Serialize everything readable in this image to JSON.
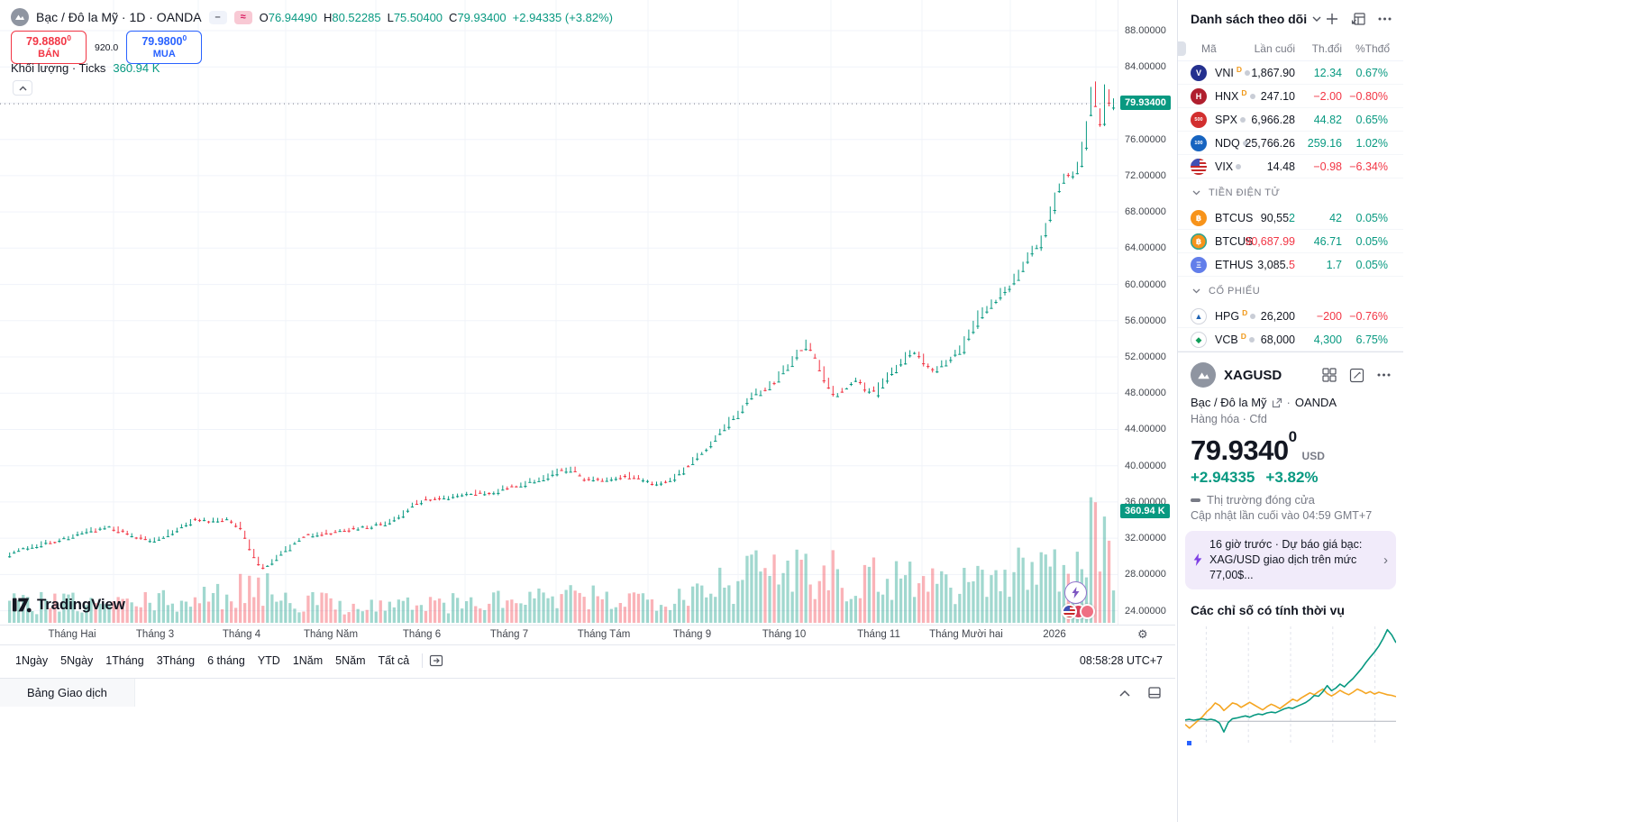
{
  "header": {
    "symbol_title": "Bạc / Đô la Mỹ · 1D · OANDA",
    "legend_icons": {
      "minus_glyph": "–",
      "wave_glyph": "≈"
    },
    "ohlc": {
      "o_label": "O",
      "o_value": "76.94490",
      "h_label": "H",
      "h_value": "80.52285",
      "l_label": "L",
      "l_value": "75.50400",
      "c_label": "C",
      "c_value": "79.93400",
      "change": "+2.94335 (+3.82%)"
    },
    "sell_button": {
      "price": "79.8880",
      "sup": "0",
      "label": "BÁN"
    },
    "spread": "920.0",
    "buy_button": {
      "price": "79.9800",
      "sup": "0",
      "label": "MUA"
    },
    "volume_row": {
      "label": "Khối lượng · Ticks",
      "value": "360.94 K"
    }
  },
  "axis": {
    "price_tag": "79.93400",
    "volume_tag": "360.94 K"
  },
  "toolbar": {
    "ranges": [
      "1Ngày",
      "5Ngày",
      "1Tháng",
      "3Tháng",
      "6 tháng",
      "YTD",
      "1Năm",
      "5Năm",
      "Tất cả"
    ],
    "clock": "08:58:28 UTC+7"
  },
  "bottom_bar": {
    "tab_label": "Bảng Giao dịch"
  },
  "logo_text": "TradingView",
  "watchlist": {
    "title": "Danh sách theo dõi",
    "columns": [
      "Mã",
      "Lần cuối",
      "Th.đổi",
      "%Thđổ"
    ],
    "groups": [
      {
        "section": null,
        "rows": [
          {
            "icon": "vni",
            "symbol": "VNI",
            "d_badge": true,
            "dot": true,
            "last": "1,867.90",
            "chg": "12.34",
            "pct": "0.67%",
            "dir": "up"
          },
          {
            "icon": "hnx",
            "symbol": "HNX",
            "d_badge": true,
            "dot": true,
            "last": "247.10",
            "chg": "−2.00",
            "pct": "−0.80%",
            "dir": "down"
          },
          {
            "icon": "spx",
            "symbol": "SPX",
            "d_badge": false,
            "dot": true,
            "last": "6,966.28",
            "chg": "44.82",
            "pct": "0.65%",
            "dir": "up"
          },
          {
            "icon": "ndq",
            "symbol": "NDQ",
            "d_badge": false,
            "dot": true,
            "last": "25,766.26",
            "chg": "259.16",
            "pct": "1.02%",
            "dir": "up"
          },
          {
            "icon": "vix",
            "symbol": "VIX",
            "d_badge": false,
            "dot": true,
            "last": "14.48",
            "chg": "−0.98",
            "pct": "−6.34%",
            "dir": "down"
          }
        ]
      },
      {
        "section": "TIỀN ĐIỆN TỬ",
        "rows": [
          {
            "icon": "btc",
            "symbol": "BTCUS",
            "d_badge": false,
            "dot": false,
            "last": "90,55",
            "last_tail": "2",
            "tail_dir": "up",
            "chg": "42",
            "pct": "0.05%",
            "dir": "up"
          },
          {
            "icon": "btc2",
            "symbol": "BTCUS",
            "d_badge": false,
            "dot": false,
            "last": "90,687.99",
            "last_dir": "down",
            "chg": "46.71",
            "pct": "0.05%",
            "dir": "up"
          },
          {
            "icon": "eth",
            "symbol": "ETHUS",
            "d_badge": false,
            "dot": false,
            "last": "3,085.",
            "last_tail": "5",
            "tail_dir": "down",
            "chg": "1.7",
            "pct": "0.05%",
            "dir": "up"
          }
        ]
      },
      {
        "section": "CỔ PHIẾU",
        "rows": [
          {
            "icon": "hpg",
            "symbol": "HPG",
            "d_badge": true,
            "dot": true,
            "last": "26,200",
            "chg": "−200",
            "pct": "−0.76%",
            "dir": "down"
          },
          {
            "icon": "vcb",
            "symbol": "VCB",
            "d_badge": true,
            "dot": true,
            "last": "68,000",
            "chg": "4,300",
            "pct": "6.75%",
            "dir": "up"
          }
        ]
      }
    ],
    "icons": {
      "vni": {
        "bg": "#24308f",
        "fg": "#ffffff",
        "glyph": "V"
      },
      "hnx": {
        "bg": "#b01f2e",
        "fg": "#ffffff",
        "glyph": "H"
      },
      "spx": {
        "bg": "#d22f2f",
        "fg": "#ffffff",
        "glyph": "500",
        "fs": "5.5px"
      },
      "ndq": {
        "bg": "#1764c0",
        "fg": "#ffffff",
        "glyph": "100",
        "fs": "5.5px"
      },
      "vix": {
        "flag": true
      },
      "btc": {
        "bg": "#f7931a",
        "fg": "#ffffff",
        "glyph": "฿"
      },
      "btc2": {
        "bg": "#f7931a",
        "fg": "#ffffff",
        "glyph": "฿",
        "ring": "#26a69a"
      },
      "eth": {
        "bg": "#627eea",
        "fg": "#ffffff",
        "glyph": "Ξ"
      },
      "hpg": {
        "bg": "#ffffff",
        "fg": "#1e63b4",
        "glyph": "▲",
        "border": "#d1d4dc"
      },
      "vcb": {
        "bg": "#ffffff",
        "fg": "#0f9d58",
        "glyph": "◆",
        "border": "#d1d4dc"
      }
    }
  },
  "detail": {
    "symbol": "XAGUSD",
    "name": "Bạc / Đô la Mỹ",
    "sep": "·",
    "exchange": "OANDA",
    "meta": "Hàng hóa · Cfd",
    "price": "79.9340",
    "price_sup": "0",
    "currency": "USD",
    "change": "+2.94335",
    "change_pct": "+3.82%",
    "status": "Thị trường đóng cửa",
    "updated": "Cập nhật lần cuối vào 04:59 GMT+7"
  },
  "news": {
    "time": "16 giờ trước",
    "sep": "·",
    "line1": "Dự báo giá bạc:",
    "line2": "XAG/USD giao dịch trên mức 77,00$..."
  },
  "seasonal_title": "Các chỉ số có tính thời vụ",
  "colors": {
    "up": "#089981",
    "down": "#f23645",
    "buy": "#2962ff",
    "purple": "#7e57c2"
  },
  "chart_data": [
    {
      "type": "candlestick",
      "symbol": "XAGUSD",
      "timeframe": "1D",
      "exchange": "OANDA",
      "title": "Bạc / Đô la Mỹ · 1D · OANDA",
      "ylim": [
        22.5,
        89.5
      ],
      "y_ticks": [
        88,
        84,
        80,
        76,
        72,
        68,
        64,
        60,
        56,
        52,
        48,
        44,
        40,
        36,
        32,
        28,
        24
      ],
      "x_categories": [
        "Tháng Hai",
        "Tháng 3",
        "Tháng 4",
        "Tháng Năm",
        "Tháng 6",
        "Tháng 7",
        "Tháng Tám",
        "Tháng 9",
        "Tháng 10",
        "Tháng 11",
        "Tháng Mười hai",
        "2026"
      ],
      "legend_ohlc": {
        "open": 76.9449,
        "high": 80.52285,
        "low": 75.504,
        "close": 79.934,
        "change": 2.94335,
        "change_pct": 3.82
      },
      "last_price": 79.934,
      "volume_ticks_label": "360.94 K",
      "price_path_anchors": [
        [
          0,
          30.2
        ],
        [
          0.015,
          30.9
        ],
        [
          0.04,
          31.6
        ],
        [
          0.07,
          32.6
        ],
        [
          0.095,
          33.3
        ],
        [
          0.11,
          32.4
        ],
        [
          0.13,
          31.7
        ],
        [
          0.155,
          33.0
        ],
        [
          0.17,
          34.2
        ],
        [
          0.185,
          33.8
        ],
        [
          0.2,
          34.1
        ],
        [
          0.212,
          33.2
        ],
        [
          0.222,
          30.4
        ],
        [
          0.232,
          28.6
        ],
        [
          0.245,
          29.9
        ],
        [
          0.258,
          31.2
        ],
        [
          0.27,
          32.3
        ],
        [
          0.29,
          32.6
        ],
        [
          0.315,
          33.1
        ],
        [
          0.34,
          33.5
        ],
        [
          0.355,
          34.4
        ],
        [
          0.37,
          35.9
        ],
        [
          0.385,
          36.4
        ],
        [
          0.405,
          36.6
        ],
        [
          0.425,
          36.9
        ],
        [
          0.445,
          37.3
        ],
        [
          0.465,
          37.9
        ],
        [
          0.48,
          38.5
        ],
        [
          0.5,
          39.3
        ],
        [
          0.512,
          39.7
        ],
        [
          0.525,
          38.4
        ],
        [
          0.545,
          38.3
        ],
        [
          0.56,
          38.9
        ],
        [
          0.575,
          38.5
        ],
        [
          0.59,
          38.0
        ],
        [
          0.605,
          38.8
        ],
        [
          0.62,
          40.3
        ],
        [
          0.635,
          42.0
        ],
        [
          0.65,
          44.2
        ],
        [
          0.665,
          46.2
        ],
        [
          0.675,
          47.6
        ],
        [
          0.685,
          48.4
        ],
        [
          0.695,
          49.0
        ],
        [
          0.705,
          50.6
        ],
        [
          0.715,
          52.2
        ],
        [
          0.725,
          53.3
        ],
        [
          0.732,
          52.2
        ],
        [
          0.74,
          49.6
        ],
        [
          0.75,
          47.9
        ],
        [
          0.76,
          48.6
        ],
        [
          0.77,
          49.7
        ],
        [
          0.778,
          48.3
        ],
        [
          0.787,
          48.1
        ],
        [
          0.797,
          49.8
        ],
        [
          0.808,
          51.2
        ],
        [
          0.818,
          52.4
        ],
        [
          0.825,
          52.7
        ],
        [
          0.833,
          51.3
        ],
        [
          0.84,
          50.4
        ],
        [
          0.85,
          51.5
        ],
        [
          0.858,
          52.3
        ],
        [
          0.865,
          52.8
        ],
        [
          0.872,
          54.6
        ],
        [
          0.88,
          56.4
        ],
        [
          0.89,
          57.6
        ],
        [
          0.9,
          58.8
        ],
        [
          0.908,
          59.8
        ],
        [
          0.915,
          60.8
        ],
        [
          0.922,
          62.4
        ],
        [
          0.928,
          64.3
        ],
        [
          0.934,
          64.1
        ],
        [
          0.94,
          65.8
        ],
        [
          0.946,
          68.2
        ],
        [
          0.952,
          70.2
        ],
        [
          0.958,
          71.8
        ],
        [
          0.963,
          72.3
        ],
        [
          0.968,
          71.9
        ],
        [
          0.973,
          73.8
        ],
        [
          0.978,
          76.8
        ],
        [
          0.982,
          80.6
        ],
        [
          0.985,
          83.2
        ],
        [
          0.988,
          78.9
        ],
        [
          0.991,
          77.0
        ],
        [
          0.994,
          80.8
        ],
        [
          0.997,
          82.0
        ],
        [
          1,
          79.93
        ]
      ],
      "volume_profile_anchors": [
        [
          0,
          0.8
        ],
        [
          0.1,
          0.75
        ],
        [
          0.18,
          0.95
        ],
        [
          0.225,
          1.5
        ],
        [
          0.26,
          0.9
        ],
        [
          0.33,
          0.7
        ],
        [
          0.42,
          0.8
        ],
        [
          0.5,
          0.95
        ],
        [
          0.58,
          1.0
        ],
        [
          0.63,
          1.5
        ],
        [
          0.68,
          2.0
        ],
        [
          0.72,
          2.4
        ],
        [
          0.75,
          2.0
        ],
        [
          0.78,
          1.8
        ],
        [
          0.82,
          1.9
        ],
        [
          0.86,
          1.5
        ],
        [
          0.9,
          1.8
        ],
        [
          0.93,
          2.1
        ],
        [
          0.96,
          2.5
        ],
        [
          0.985,
          3.1
        ],
        [
          1,
          2.2
        ]
      ]
    },
    {
      "type": "line",
      "title": "Các chỉ số có tính thời vụ",
      "baseline_y_pct": 78,
      "grid": "dashed-vertical",
      "series": [
        {
          "name": "current-path",
          "color": "#089981",
          "values": [
            77,
            76.5,
            77.2,
            76.6,
            76.1,
            76.9,
            76.4,
            77.3,
            79.5,
            86.5,
            79,
            76,
            75.4,
            74.6,
            73.8,
            74.8,
            73.2,
            72.3,
            72.8,
            71.4,
            70.8,
            71.3,
            69.8,
            68.2,
            67.2,
            67.8,
            66.2,
            64.8,
            63.2,
            60.8,
            57.6,
            58.2,
            54.6,
            49.8,
            53.8,
            51.8,
            48.6,
            50.8,
            47.2,
            44.2,
            40.2,
            36.2,
            31.4,
            27.2,
            23.2,
            18.4,
            12.4,
            5.4,
            9.6,
            15.8
          ]
        },
        {
          "name": "seasonal-average",
          "color": "#f5a623",
          "values": [
            80.5,
            83.5,
            80.5,
            77.5,
            74.5,
            70.5,
            67.5,
            63.5,
            65.5,
            69.5,
            66.5,
            63.5,
            64.5,
            67,
            65,
            63,
            65,
            67,
            69,
            66.5,
            64.5,
            66,
            68,
            65.5,
            63,
            60.5,
            62,
            59.5,
            57.5,
            55.5,
            57,
            54.5,
            52.5,
            56,
            58,
            56,
            53.5,
            55.5,
            57,
            55,
            52.5,
            54,
            56,
            54.5,
            56.5,
            55,
            56,
            57,
            57.5,
            58.5
          ]
        }
      ]
    }
  ]
}
